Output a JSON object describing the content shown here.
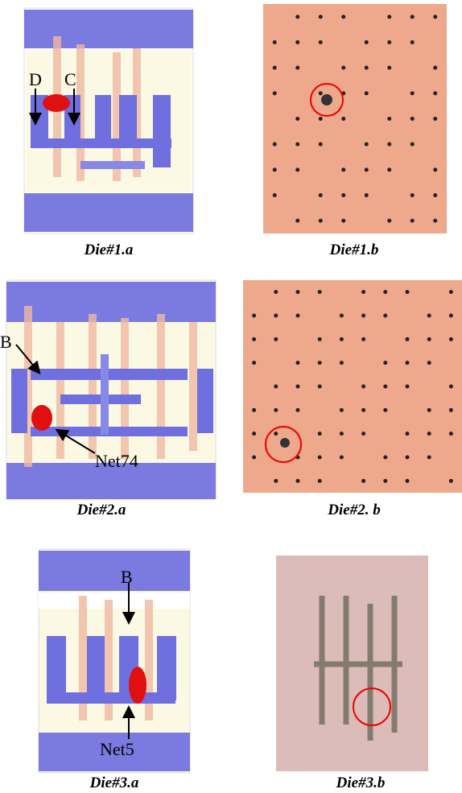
{
  "panels": [
    {
      "caption": "Die#1.a",
      "labels": [
        "D",
        "C"
      ]
    },
    {
      "caption": "Die#1.b"
    },
    {
      "caption": "Die#2.a",
      "labels": [
        "B",
        "Net74"
      ]
    },
    {
      "caption": "Die#2. b"
    },
    {
      "caption": "Die#3.a",
      "labels": [
        "B",
        "Net5"
      ]
    },
    {
      "caption": "Die#3.b"
    }
  ]
}
